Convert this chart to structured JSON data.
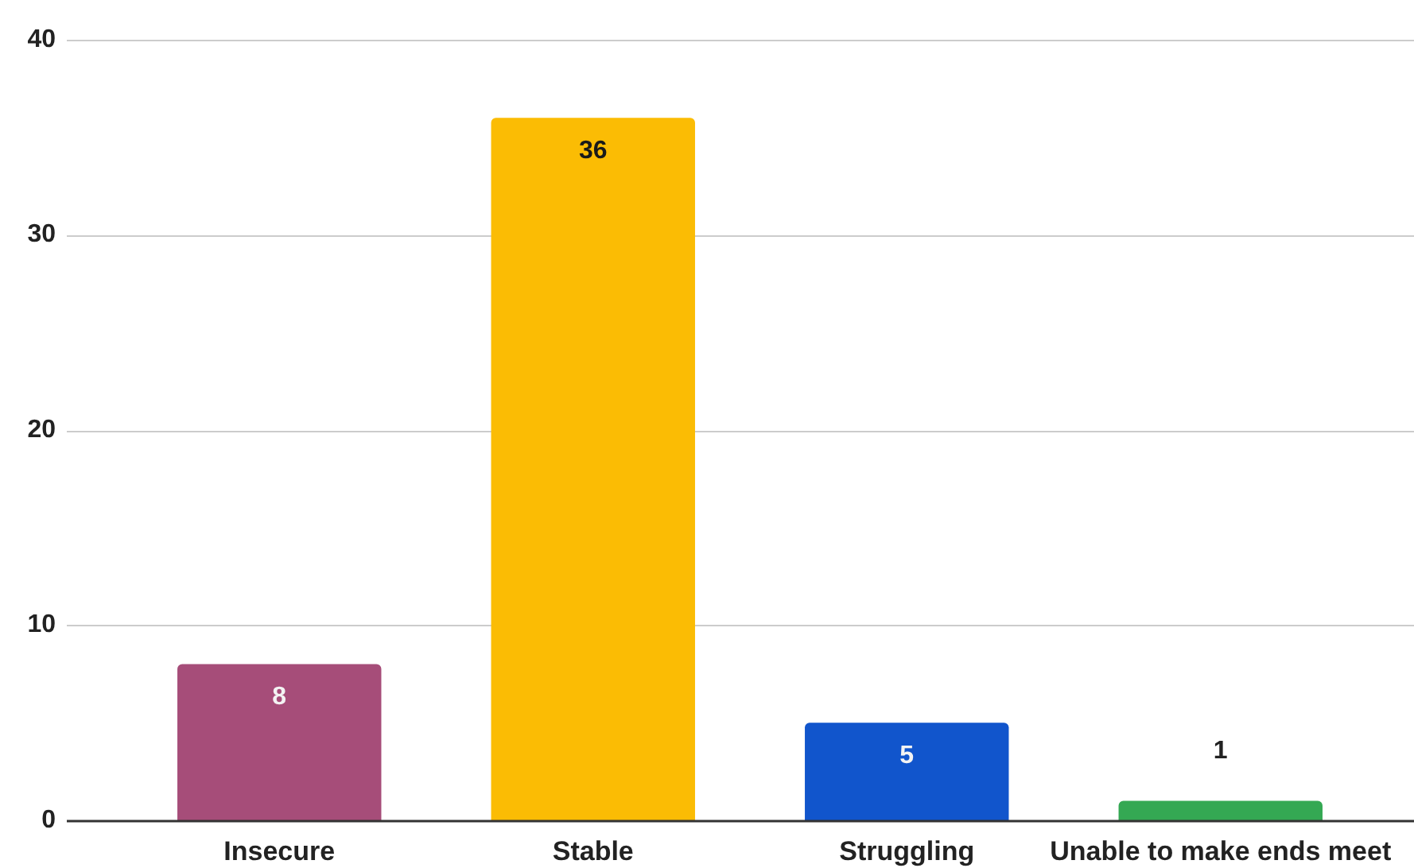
{
  "chart_data": {
    "type": "bar",
    "categories": [
      "Insecure",
      "Stable",
      "Struggling",
      "Unable to make ends meet"
    ],
    "values": [
      8,
      36,
      5,
      1
    ],
    "colors": [
      "#a64d79",
      "#fbbc04",
      "#1155cc",
      "#34a853"
    ],
    "ylim": [
      0,
      40
    ],
    "yticks": [
      0,
      10,
      20,
      30,
      40
    ],
    "grid": "y",
    "data_labels": true
  }
}
